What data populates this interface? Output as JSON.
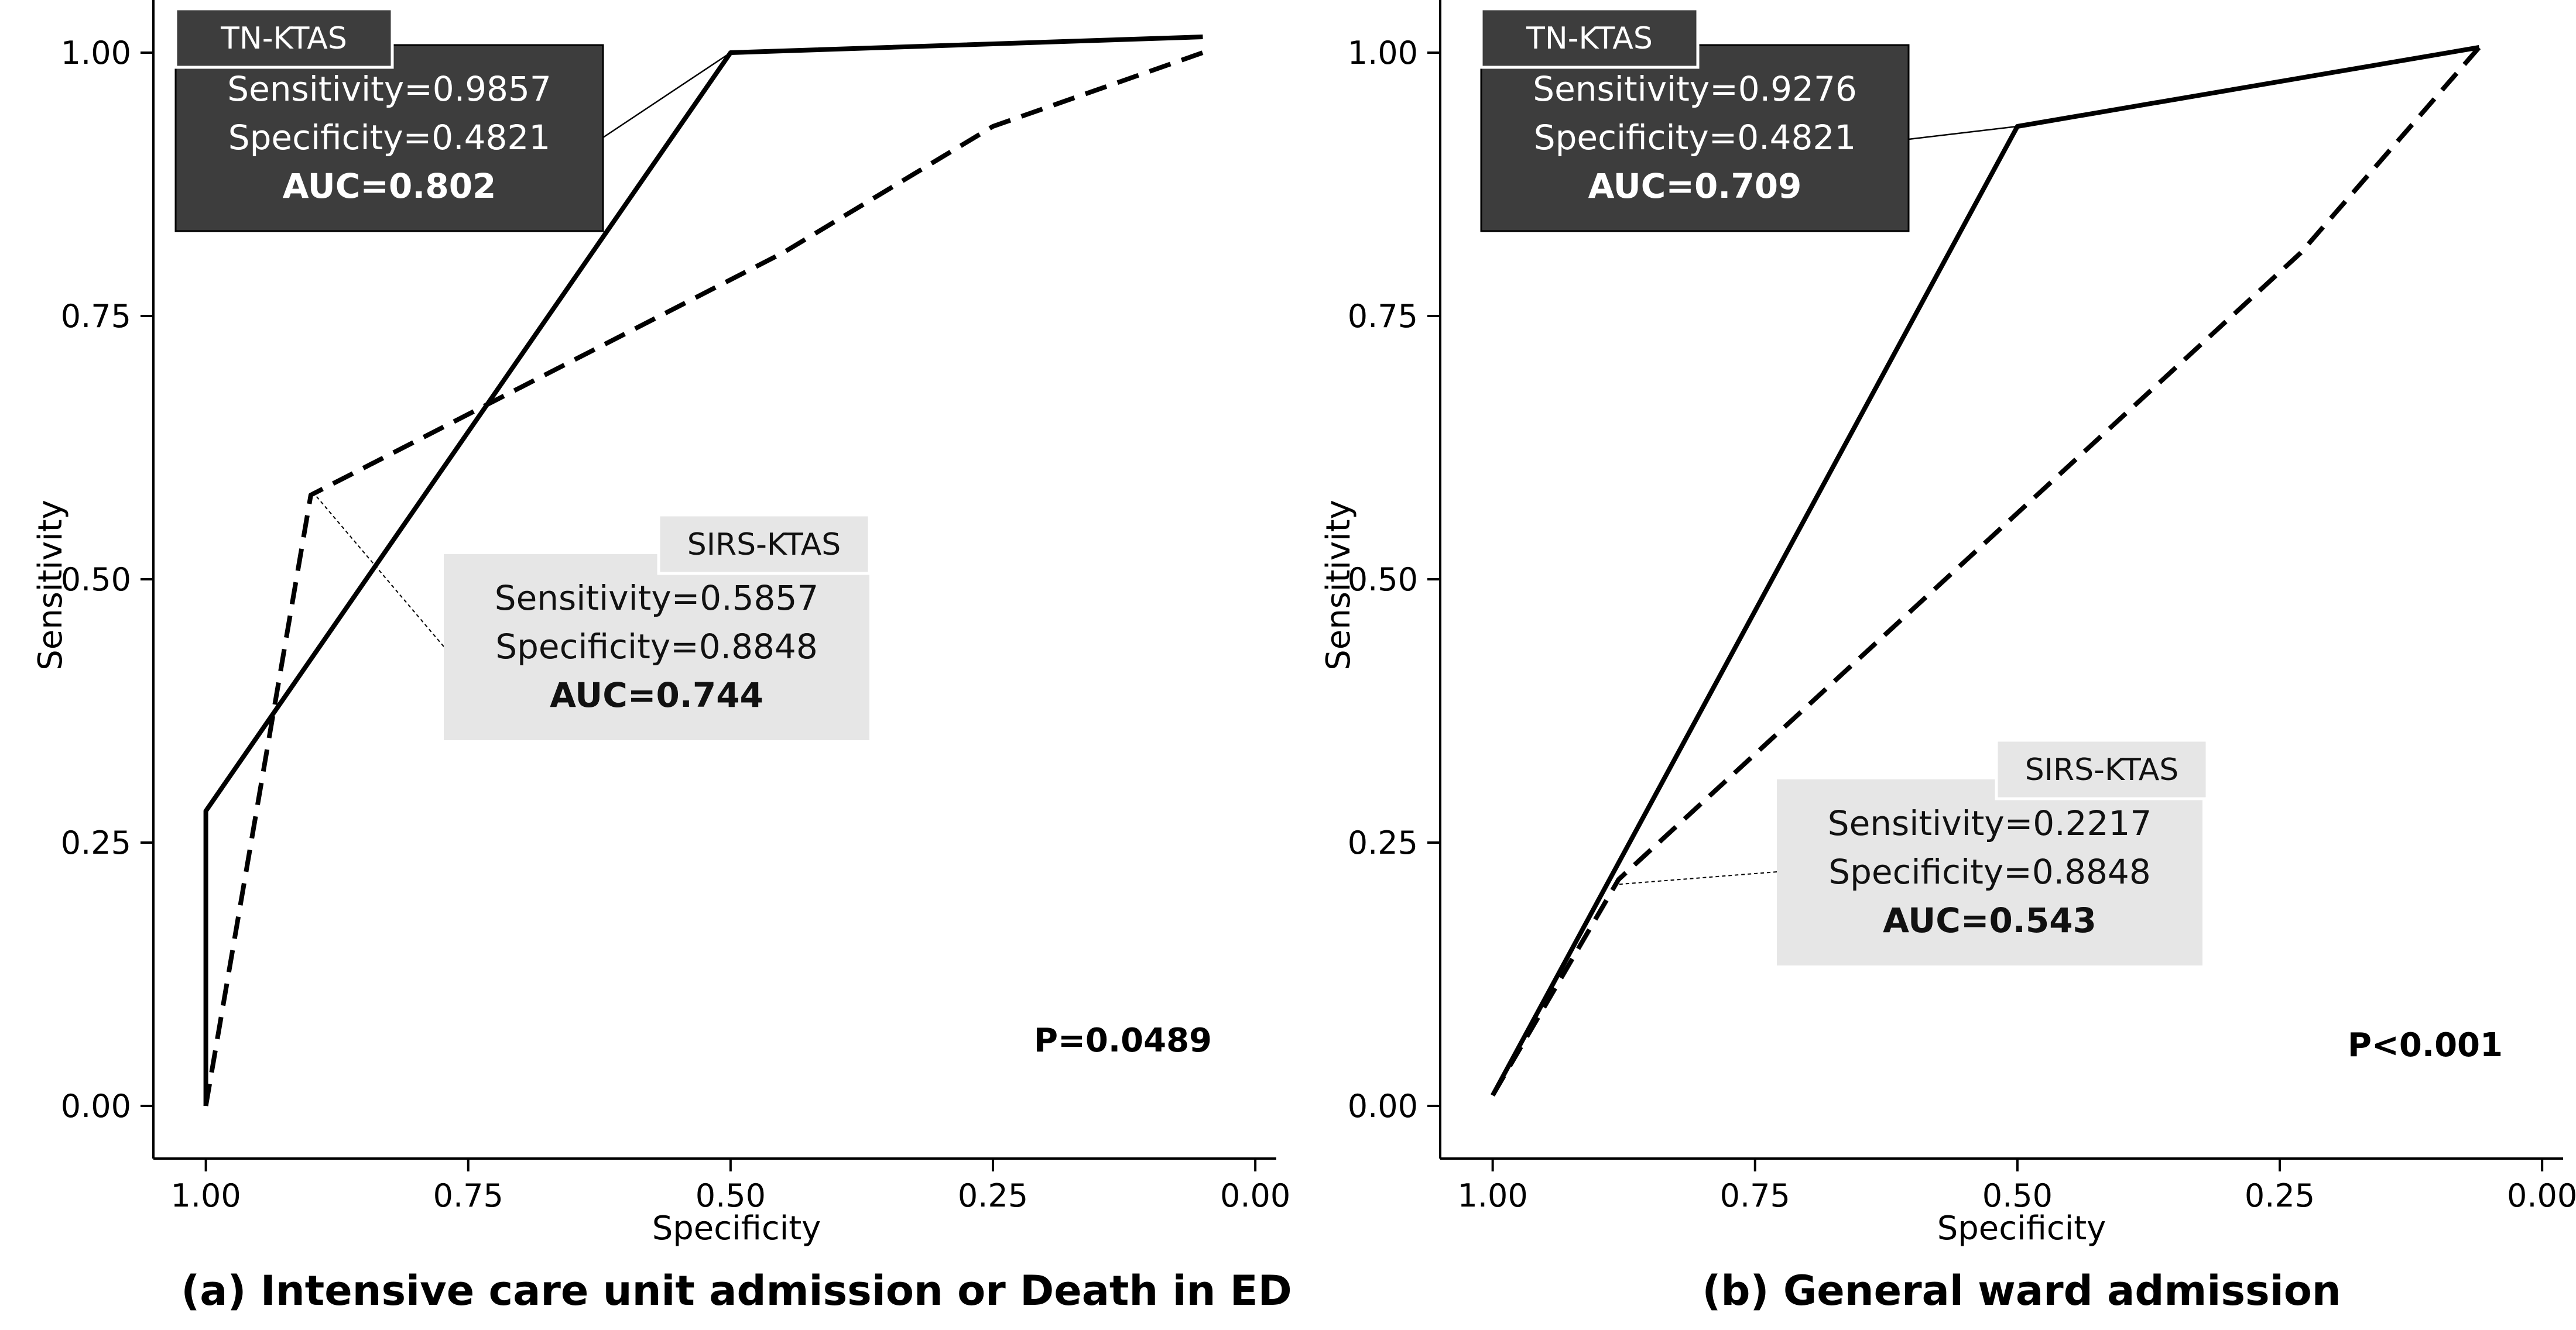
{
  "chart_data": [
    {
      "type": "line",
      "title": "(a) Intensive care unit admission or Death in ED",
      "xlabel": "Specificity",
      "ylabel": "Sensitivity",
      "x_reversed": true,
      "xlim": [
        1.05,
        -0.02
      ],
      "ylim": [
        -0.05,
        1.05
      ],
      "xticks": [
        1.0,
        0.75,
        0.5,
        0.25,
        0.0
      ],
      "yticks": [
        0.0,
        0.25,
        0.5,
        0.75,
        1.0
      ],
      "xtick_labels": [
        "1.00",
        "0.75",
        "0.50",
        "0.25",
        "0.00"
      ],
      "ytick_labels": [
        "0.00",
        "0.25",
        "0.50",
        "0.75",
        "1.00"
      ],
      "grid": false,
      "series": [
        {
          "name": "TN-KTAS",
          "style": "solid",
          "points": [
            [
              1.0,
              0.0
            ],
            [
              1.0,
              0.28
            ],
            [
              0.5,
              1.0
            ],
            [
              0.05,
              1.015
            ]
          ]
        },
        {
          "name": "SIRS-KTAS",
          "style": "dashed",
          "points": [
            [
              1.0,
              0.0
            ],
            [
              0.9,
              0.58
            ],
            [
              0.45,
              0.81
            ],
            [
              0.25,
              0.93
            ],
            [
              0.05,
              1.0
            ]
          ]
        }
      ],
      "annotations": [
        {
          "label": "TN-KTAS",
          "theme": "dark",
          "anchor": [
            0.5,
            1.0
          ],
          "lines": [
            "Sensitivity=0.9857",
            "Specificity=0.4821"
          ],
          "auc": "AUC=0.802"
        },
        {
          "label": "SIRS-KTAS",
          "theme": "light",
          "anchor": [
            0.9,
            0.585
          ],
          "lines": [
            "Sensitivity=0.5857",
            "Specificity=0.8848"
          ],
          "auc": "AUC=0.744"
        }
      ],
      "p_value": "P=0.0489"
    },
    {
      "type": "line",
      "title": "(b) General ward admission",
      "xlabel": "Specificity",
      "ylabel": "Sensitivity",
      "x_reversed": true,
      "xlim": [
        1.05,
        -0.02
      ],
      "ylim": [
        -0.05,
        1.05
      ],
      "xticks": [
        1.0,
        0.75,
        0.5,
        0.25,
        0.0
      ],
      "yticks": [
        0.0,
        0.25,
        0.5,
        0.75,
        1.0
      ],
      "xtick_labels": [
        "1.00",
        "0.75",
        "0.50",
        "0.25",
        "0.00"
      ],
      "ytick_labels": [
        "0.00",
        "0.25",
        "0.50",
        "0.75",
        "1.00"
      ],
      "grid": false,
      "series": [
        {
          "name": "TN-KTAS",
          "style": "solid",
          "points": [
            [
              1.0,
              0.01
            ],
            [
              0.5,
              0.93
            ],
            [
              0.06,
              1.005
            ]
          ]
        },
        {
          "name": "SIRS-KTAS",
          "style": "dashed",
          "points": [
            [
              1.0,
              0.01
            ],
            [
              0.88,
              0.215
            ],
            [
              0.23,
              0.81
            ],
            [
              0.06,
              1.005
            ]
          ]
        }
      ],
      "annotations": [
        {
          "label": "TN-KTAS",
          "theme": "dark",
          "anchor": [
            0.5,
            0.93
          ],
          "lines": [
            "Sensitivity=0.9276",
            "Specificity=0.4821"
          ],
          "auc": "AUC=0.709"
        },
        {
          "label": "SIRS-KTAS",
          "theme": "light",
          "anchor": [
            0.885,
            0.21
          ],
          "lines": [
            "Sensitivity=0.2217",
            "Specificity=0.8848"
          ],
          "auc": "AUC=0.543"
        }
      ],
      "p_value": "P<0.001"
    }
  ]
}
